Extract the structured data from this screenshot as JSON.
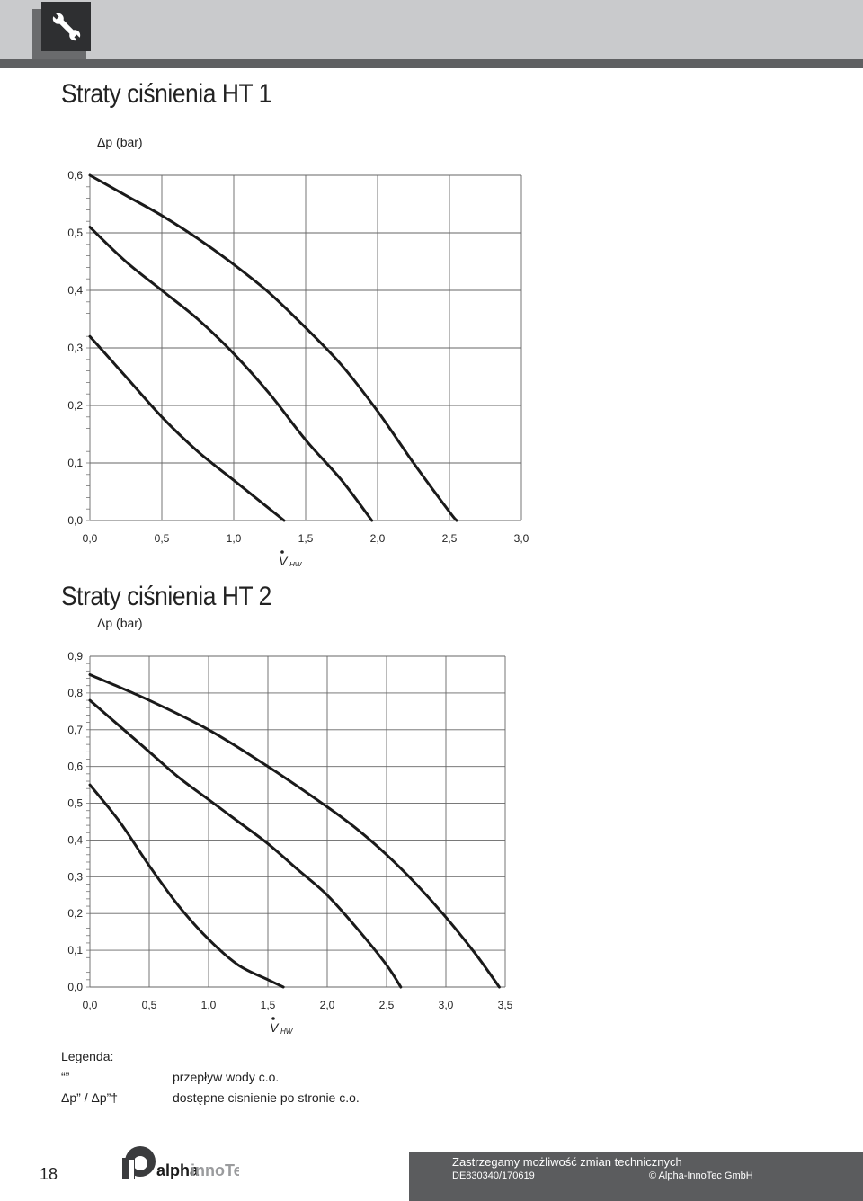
{
  "header": {
    "icon": "wrench-icon"
  },
  "section1": {
    "title": "Straty ciśnienia HT 1",
    "ylabel": "Δp (bar)",
    "xlabel_main": "V",
    "xlabel_sub": "HW",
    "chart_data": {
      "type": "line",
      "title": "Straty ciśnienia HT 1",
      "ylabel": "Δp (bar)",
      "xlabel": "V HW",
      "xlim": [
        0,
        3.0
      ],
      "ylim": [
        0,
        0.6
      ],
      "x_ticks": [
        "0,0",
        "0,5",
        "1,0",
        "1,5",
        "2,0",
        "2,5",
        "3,0"
      ],
      "y_ticks": [
        "0,0",
        "0,1",
        "0,2",
        "0,3",
        "0,4",
        "0,5",
        "0,6"
      ],
      "grid": true,
      "series": [
        {
          "x": [
            0.0,
            0.25,
            0.5,
            0.75,
            1.0,
            1.25,
            1.35
          ],
          "y": [
            0.32,
            0.25,
            0.18,
            0.12,
            0.07,
            0.02,
            0.0
          ]
        },
        {
          "x": [
            0.0,
            0.25,
            0.5,
            0.75,
            1.0,
            1.25,
            1.5,
            1.75,
            1.96
          ],
          "y": [
            0.51,
            0.45,
            0.4,
            0.35,
            0.29,
            0.22,
            0.14,
            0.07,
            0.0
          ]
        },
        {
          "x": [
            0.0,
            0.25,
            0.5,
            0.75,
            1.0,
            1.25,
            1.5,
            1.75,
            2.0,
            2.25,
            2.5,
            2.55
          ],
          "y": [
            0.6,
            0.565,
            0.53,
            0.49,
            0.445,
            0.395,
            0.335,
            0.27,
            0.19,
            0.1,
            0.015,
            0.0
          ]
        }
      ]
    }
  },
  "section2": {
    "title": "Straty ciśnienia HT 2",
    "ylabel": "Δp (bar)",
    "xlabel_main": "V",
    "xlabel_sub": "HW",
    "chart_data": {
      "type": "line",
      "title": "Straty ciśnienia HT 2",
      "ylabel": "Δp (bar)",
      "xlabel": "V HW",
      "xlim": [
        0,
        3.5
      ],
      "ylim": [
        0,
        0.9
      ],
      "x_ticks": [
        "0,0",
        "0,5",
        "1,0",
        "1,5",
        "2,0",
        "2,5",
        "3,0",
        "3,5"
      ],
      "y_ticks": [
        "0,0",
        "0,1",
        "0,2",
        "0,3",
        "0,4",
        "0,5",
        "0,6",
        "0,7",
        "0,8",
        "0,9"
      ],
      "grid": true,
      "series": [
        {
          "x": [
            0.0,
            0.25,
            0.5,
            0.75,
            1.0,
            1.25,
            1.5,
            1.63
          ],
          "y": [
            0.55,
            0.45,
            0.33,
            0.22,
            0.13,
            0.06,
            0.02,
            0.0
          ]
        },
        {
          "x": [
            0.0,
            0.25,
            0.5,
            0.75,
            1.0,
            1.25,
            1.5,
            1.75,
            2.0,
            2.25,
            2.5,
            2.62
          ],
          "y": [
            0.78,
            0.71,
            0.64,
            0.57,
            0.51,
            0.45,
            0.39,
            0.32,
            0.25,
            0.16,
            0.06,
            0.0
          ]
        },
        {
          "x": [
            0.0,
            0.5,
            1.0,
            1.5,
            2.0,
            2.25,
            2.5,
            2.75,
            3.0,
            3.25,
            3.45
          ],
          "y": [
            0.85,
            0.78,
            0.7,
            0.6,
            0.49,
            0.43,
            0.36,
            0.28,
            0.19,
            0.09,
            0.0
          ]
        }
      ]
    }
  },
  "legend": {
    "title": "Legenda:",
    "rows": [
      {
        "symbol": "“”",
        "desc": "przepływ wody c.o."
      },
      {
        "symbol": "Δp” / Δp”†",
        "desc": "dostępne cisnienie po stronie c.o."
      }
    ]
  },
  "footer": {
    "page_number": "18",
    "logo_text_bold": "alpha",
    "logo_text_light": "innoTec",
    "notice": "Zastrzegamy możliwość zmian technicznych",
    "doc_id": "DE830340/170619",
    "copyright": "© Alpha-InnoTec GmbH"
  },
  "colors": {
    "header_bg": "#c9cacc",
    "header_line": "#5f6062",
    "footer_bar": "#5b5c5e",
    "curve": "#1a1a1a",
    "grid": "#555555"
  }
}
